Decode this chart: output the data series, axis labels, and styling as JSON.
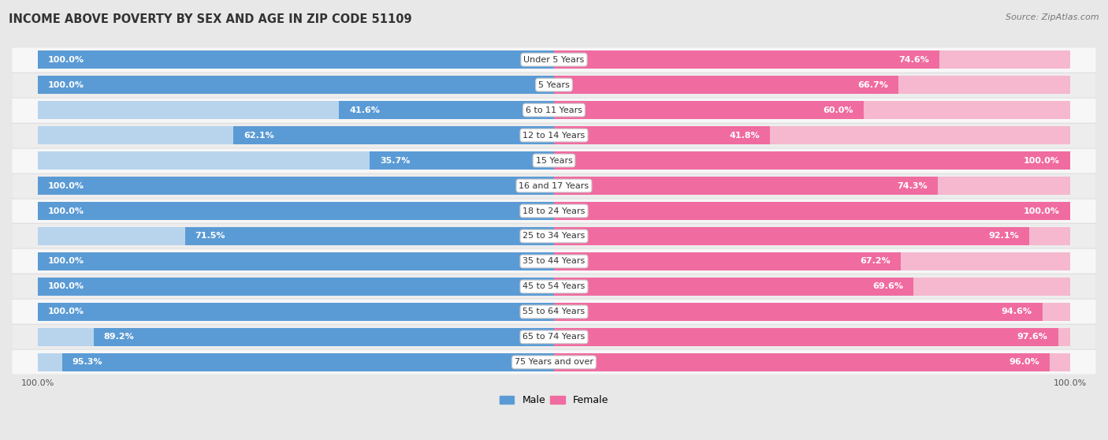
{
  "title": "INCOME ABOVE POVERTY BY SEX AND AGE IN ZIP CODE 51109",
  "source": "Source: ZipAtlas.com",
  "categories": [
    "Under 5 Years",
    "5 Years",
    "6 to 11 Years",
    "12 to 14 Years",
    "15 Years",
    "16 and 17 Years",
    "18 to 24 Years",
    "25 to 34 Years",
    "35 to 44 Years",
    "45 to 54 Years",
    "55 to 64 Years",
    "65 to 74 Years",
    "75 Years and over"
  ],
  "male": [
    100.0,
    100.0,
    41.6,
    62.1,
    35.7,
    100.0,
    100.0,
    71.5,
    100.0,
    100.0,
    100.0,
    89.2,
    95.3
  ],
  "female": [
    74.6,
    66.7,
    60.0,
    41.8,
    100.0,
    74.3,
    100.0,
    92.1,
    67.2,
    69.6,
    94.6,
    97.6,
    96.0
  ],
  "male_full_color": "#5b9bd5",
  "male_light_color": "#b8d4ed",
  "female_full_color": "#f06ba0",
  "female_light_color": "#f5b8cf",
  "bg_color": "#e8e8e8",
  "row_bg_light": "#f0f0f0",
  "row_bg_dark": "#e0e0e0",
  "max_val": 100.0,
  "bar_height": 0.72,
  "title_fontsize": 10.5,
  "label_fontsize": 8,
  "value_fontsize": 8,
  "tick_fontsize": 8,
  "source_fontsize": 8
}
